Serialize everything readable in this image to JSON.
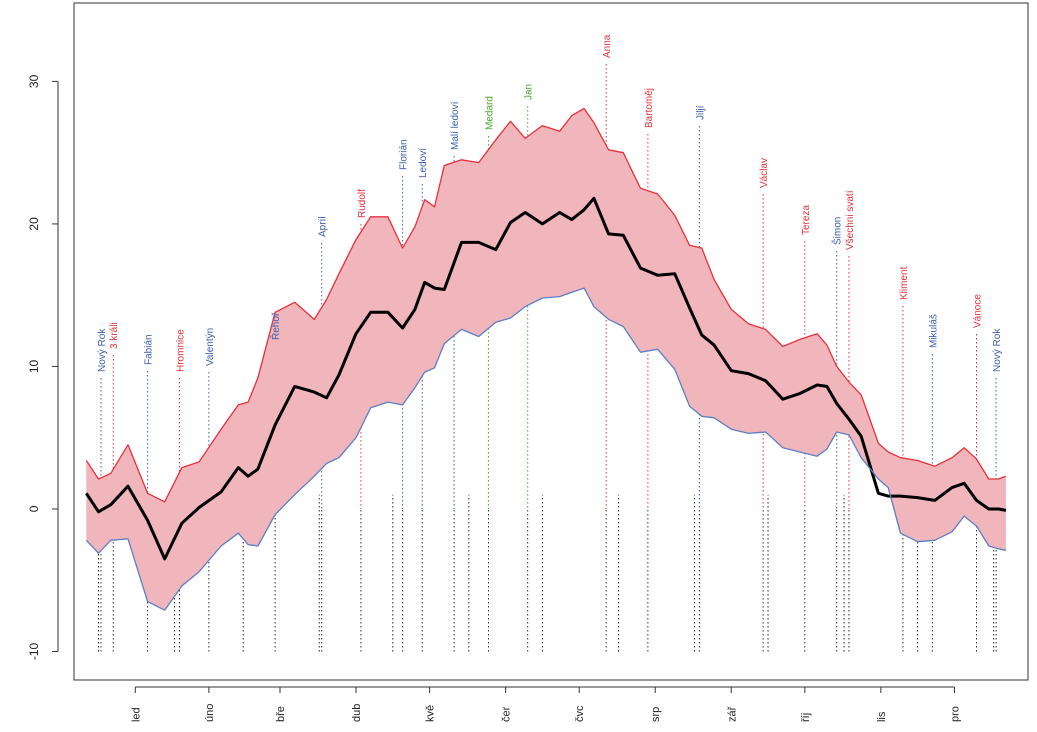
{
  "chart_data": {
    "type": "area",
    "title": "",
    "xlabel": "",
    "ylabel": "",
    "xlim": [
      -10,
      379
    ],
    "ylim": [
      -12,
      35.5
    ],
    "grid": false,
    "yticks": [
      -10,
      0,
      10,
      20,
      30
    ],
    "months": [
      {
        "label": "led",
        "day": 15
      },
      {
        "label": "úno",
        "day": 45
      },
      {
        "label": "bře",
        "day": 74
      },
      {
        "label": "dub",
        "day": 105
      },
      {
        "label": "kvě",
        "day": 135
      },
      {
        "label": "čer",
        "day": 166
      },
      {
        "label": "čvc",
        "day": 196
      },
      {
        "label": "srp",
        "day": 227
      },
      {
        "label": "zář",
        "day": 258
      },
      {
        "label": "říj",
        "day": 288
      },
      {
        "label": "lis",
        "day": 319
      },
      {
        "label": "pro",
        "day": 349
      }
    ],
    "dividers": [
      0,
      31,
      59,
      90,
      120,
      151,
      181,
      212,
      243,
      273,
      304,
      334,
      365
    ],
    "days": [
      -5,
      0,
      5,
      12,
      20,
      27,
      34,
      41,
      50,
      57,
      61,
      65,
      72,
      80,
      88,
      93,
      98,
      105,
      111,
      118,
      124,
      129,
      133,
      137,
      141,
      148,
      155,
      162,
      168,
      174,
      181,
      188,
      193,
      198,
      202,
      208,
      214,
      221,
      228,
      235,
      241,
      246,
      251,
      258,
      265,
      272,
      279,
      286,
      293,
      297,
      301,
      306,
      311,
      318,
      322,
      327,
      334,
      341,
      348,
      353,
      358,
      363,
      367,
      370
    ],
    "series": [
      {
        "name": "",
        "color": "#e8303a",
        "values": [
          3.4,
          2.1,
          2.5,
          4.5,
          1.1,
          0.5,
          2.9,
          3.3,
          5.6,
          7.3,
          7.5,
          9.2,
          13.8,
          14.5,
          13.3,
          14.7,
          16.5,
          18.9,
          20.5,
          20.5,
          18.3,
          19.8,
          21.7,
          21.2,
          24.1,
          24.5,
          24.3,
          25.9,
          27.2,
          26.0,
          26.9,
          26.5,
          27.6,
          28.1,
          27.1,
          25.2,
          25.0,
          22.5,
          22.1,
          20.6,
          18.5,
          18.3,
          16.1,
          14.0,
          13.0,
          12.6,
          11.4,
          11.9,
          12.3,
          11.5,
          10.0,
          8.9,
          8.0,
          4.6,
          4.0,
          3.6,
          3.4,
          3.0,
          3.6,
          4.3,
          3.5,
          2.1,
          2.1,
          2.3
        ]
      },
      {
        "name": "",
        "color": "#000000",
        "values": [
          1.1,
          -0.2,
          0.3,
          1.6,
          -0.8,
          -3.5,
          -1.0,
          0.1,
          1.2,
          2.9,
          2.3,
          2.8,
          5.9,
          8.6,
          8.2,
          7.8,
          9.4,
          12.3,
          13.8,
          13.8,
          12.7,
          14.0,
          15.9,
          15.5,
          15.4,
          18.7,
          18.7,
          18.2,
          20.1,
          20.8,
          20.0,
          20.8,
          20.3,
          21.0,
          21.8,
          19.3,
          19.2,
          16.9,
          16.4,
          16.5,
          14.1,
          12.2,
          11.5,
          9.7,
          9.5,
          9.0,
          7.7,
          8.1,
          8.7,
          8.6,
          7.4,
          6.3,
          5.1,
          1.1,
          0.9,
          0.9,
          0.8,
          0.6,
          1.5,
          1.8,
          0.6,
          0.0,
          0.0,
          -0.1
        ]
      },
      {
        "name": "",
        "color": "#5b7fc7",
        "values": [
          -2.2,
          -3.1,
          -2.2,
          -2.1,
          -6.5,
          -7.1,
          -5.4,
          -4.4,
          -2.6,
          -1.7,
          -2.5,
          -2.6,
          -0.4,
          1.0,
          2.3,
          3.2,
          3.6,
          5.0,
          7.1,
          7.5,
          7.3,
          8.5,
          9.6,
          9.9,
          11.6,
          12.6,
          12.1,
          13.1,
          13.4,
          14.2,
          14.8,
          14.9,
          15.2,
          15.5,
          14.2,
          13.3,
          12.8,
          11.0,
          11.2,
          9.8,
          7.2,
          6.5,
          6.4,
          5.6,
          5.3,
          5.4,
          4.3,
          4.0,
          3.7,
          4.2,
          5.4,
          5.2,
          3.6,
          2.1,
          1.5,
          -1.7,
          -2.3,
          -2.2,
          -1.6,
          -0.5,
          -1.2,
          -2.6,
          -2.8,
          -2.9
        ]
      }
    ],
    "annotations": [
      {
        "text": "Nový Rok",
        "day": 1,
        "color": "#3a5fb0"
      },
      {
        "text": "3 králi",
        "day": 6,
        "color": "#e8303a"
      },
      {
        "text": "Fabián",
        "day": 20,
        "color": "#3a5fb0"
      },
      {
        "text": "Hromnice",
        "day": 33,
        "color": "#e8303a"
      },
      {
        "text": "Valentýn",
        "day": 45,
        "color": "#3a5fb0"
      },
      {
        "text": "Řehoř",
        "day": 72,
        "color": "#3a5fb0"
      },
      {
        "text": "Apríl",
        "day": 91,
        "color": "#3a5fb0"
      },
      {
        "text": "Rudolf",
        "day": 107,
        "color": "#e8303a"
      },
      {
        "text": "Florián",
        "day": 124,
        "color": "#3a5fb0"
      },
      {
        "text": "Ledoví",
        "day": 132,
        "color": "#3a5fb0"
      },
      {
        "text": "Malí ledoví",
        "day": 145,
        "color": "#3a5fb0"
      },
      {
        "text": "Medard",
        "day": 159,
        "color": "#4aa52e"
      },
      {
        "text": "Jan",
        "day": 175,
        "color": "#4aa52e"
      },
      {
        "text": "Anna",
        "day": 207,
        "color": "#e8303a"
      },
      {
        "text": "Bartoměj",
        "day": 224,
        "color": "#e8303a"
      },
      {
        "text": "Jiljí",
        "day": 245,
        "color": "#3a5fb0"
      },
      {
        "text": "Václav",
        "day": 271,
        "color": "#e8303a"
      },
      {
        "text": "Tereza",
        "day": 288,
        "color": "#e8303a"
      },
      {
        "text": "Šimon",
        "day": 301,
        "color": "#3a5fb0"
      },
      {
        "text": "Všechni svatí",
        "day": 306,
        "color": "#e8303a"
      },
      {
        "text": "Kliment",
        "day": 328,
        "color": "#e8303a"
      },
      {
        "text": "Mikuláš",
        "day": 340,
        "color": "#3a5fb0"
      },
      {
        "text": "Vánoce",
        "day": 358,
        "color": "#e8303a"
      },
      {
        "text": "Nový Rok",
        "day": 366,
        "color": "#3a5fb0"
      }
    ],
    "fill_color": "#f0b6bc"
  }
}
